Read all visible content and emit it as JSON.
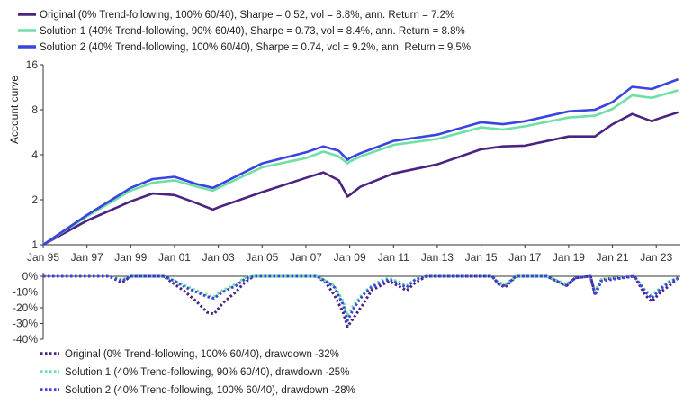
{
  "chart_data": [
    {
      "type": "line",
      "title": "",
      "xlabel": "",
      "ylabel": "Account curve",
      "y_scale": "log2",
      "ylim": [
        1,
        16
      ],
      "y_ticks": [
        1,
        2,
        4,
        8,
        16
      ],
      "y_tick_labels": [
        "1",
        "2",
        "4",
        "8",
        "16"
      ],
      "x_range": [
        1995.0,
        2024.1
      ],
      "x_tick_labels": [
        "Jan 95",
        "Jan 97",
        "Jan 99",
        "Jan 01",
        "Jan 03",
        "Jan 05",
        "Jan 07",
        "Jan 09",
        "Jan 11",
        "Jan 13",
        "Jan 15",
        "Jan 17",
        "Jan 19",
        "Jan 21",
        "Jan 23"
      ],
      "grid": "none",
      "legend_placement": "top-left",
      "x": [
        1995.0,
        1997.0,
        1999.0,
        2000.0,
        2001.0,
        2002.0,
        2002.75,
        2003.0,
        2005.0,
        2007.0,
        2007.8,
        2008.5,
        2008.9,
        2009.0,
        2009.5,
        2011.0,
        2013.0,
        2015.0,
        2016.0,
        2017.0,
        2019.0,
        2020.2,
        2021.0,
        2021.9,
        2022.8,
        2023.0,
        2024.0
      ],
      "series": [
        {
          "name": "Original (0% Trend-following, 100% 60/40), Sharpe = 0.52, vol = 8.8%, ann. Return = 7.2%",
          "color": "#4b2380",
          "values": [
            1.0,
            1.45,
            1.95,
            2.2,
            2.15,
            1.9,
            1.72,
            1.78,
            2.25,
            2.8,
            3.05,
            2.7,
            2.1,
            2.15,
            2.45,
            3.0,
            3.45,
            4.35,
            4.55,
            4.6,
            5.3,
            5.3,
            6.4,
            7.5,
            6.7,
            6.9,
            7.7
          ]
        },
        {
          "name": "Solution 1 (40% Trend-following, 90% 60/40), Sharpe = 0.73, vol = 8.4%, ann. Return = 8.8%",
          "color": "#6ee0a3",
          "values": [
            1.0,
            1.55,
            2.3,
            2.6,
            2.7,
            2.45,
            2.3,
            2.4,
            3.3,
            3.8,
            4.2,
            3.9,
            3.5,
            3.6,
            3.9,
            4.65,
            5.1,
            6.1,
            5.9,
            6.2,
            7.1,
            7.3,
            8.1,
            10.0,
            9.6,
            9.8,
            10.8
          ]
        },
        {
          "name": "Solution 2 (40% Trend-following, 100% 60/40), Sharpe = 0.74, vol = 9.2%, ann. Return = 9.5%",
          "color": "#3a44e0",
          "values": [
            1.0,
            1.58,
            2.4,
            2.75,
            2.85,
            2.55,
            2.4,
            2.5,
            3.5,
            4.15,
            4.55,
            4.25,
            3.7,
            3.8,
            4.1,
            4.95,
            5.45,
            6.6,
            6.4,
            6.7,
            7.8,
            8.0,
            9.0,
            11.4,
            11.0,
            11.3,
            12.8
          ]
        }
      ]
    },
    {
      "type": "line",
      "title": "",
      "xlabel": "",
      "ylabel": "",
      "ylim": [
        -40,
        0
      ],
      "y_ticks": [
        0,
        -10,
        -20,
        -30,
        -40
      ],
      "y_tick_labels": [
        "0%",
        "-10%",
        "-20%",
        "-30%",
        "-40%"
      ],
      "x_range": [
        1995.0,
        2024.1
      ],
      "grid": "none",
      "legend_placement": "bottom-left",
      "x": [
        1995.0,
        1998.0,
        1998.6,
        1999.0,
        2000.5,
        2001.0,
        2001.5,
        2002.0,
        2002.5,
        2002.8,
        2003.2,
        2003.8,
        2004.2,
        2004.6,
        2007.5,
        2007.9,
        2008.3,
        2008.7,
        2008.9,
        2009.2,
        2009.6,
        2010.0,
        2010.4,
        2010.8,
        2011.6,
        2012.0,
        2012.5,
        2015.5,
        2015.8,
        2016.1,
        2016.6,
        2018.0,
        2018.9,
        2019.3,
        2020.0,
        2020.2,
        2020.5,
        2022.0,
        2022.5,
        2022.8,
        2023.2,
        2023.6,
        2024.0
      ],
      "series": [
        {
          "name": "Original (0% Trend-following, 100% 60/40), drawdown -32%",
          "color": "#4b2380",
          "values": [
            0,
            0,
            -4,
            0,
            0,
            -5,
            -10,
            -16,
            -23,
            -24,
            -17,
            -10,
            -4,
            0,
            0,
            -4,
            -12,
            -23,
            -32,
            -26,
            -18,
            -9,
            -6,
            -3,
            -9,
            -4,
            0,
            0,
            -5,
            -7,
            0,
            0,
            -6,
            -1,
            0,
            -11,
            -2,
            0,
            -12,
            -16,
            -10,
            -6,
            -1
          ]
        },
        {
          "name": "Solution 1 (40% Trend-following, 90% 60/40), drawdown -25%",
          "color": "#6ee0a3",
          "values": [
            0,
            0,
            -2,
            0,
            0,
            -3,
            -6,
            -9,
            -12,
            -13,
            -9,
            -5,
            -1,
            0,
            0,
            -3,
            -6,
            -16,
            -25,
            -18,
            -11,
            -6,
            -3,
            -1,
            -6,
            -2,
            0,
            0,
            -4,
            -5,
            0,
            0,
            -5,
            -1,
            0,
            -10,
            -2,
            0,
            -9,
            -12,
            -7,
            -3,
            -1
          ]
        },
        {
          "name": "Solution 2 (40% Trend-following, 100% 60/40), drawdown -28%",
          "color": "#3a44e0",
          "values": [
            0,
            0,
            -3,
            0,
            0,
            -3,
            -7,
            -10,
            -13,
            -14,
            -10,
            -6,
            -2,
            0,
            0,
            -3,
            -7,
            -18,
            -28,
            -20,
            -12,
            -7,
            -4,
            -2,
            -7,
            -2,
            0,
            0,
            -5,
            -6,
            0,
            0,
            -6,
            -1,
            0,
            -12,
            -3,
            0,
            -10,
            -14,
            -8,
            -4,
            -1
          ]
        }
      ]
    }
  ]
}
